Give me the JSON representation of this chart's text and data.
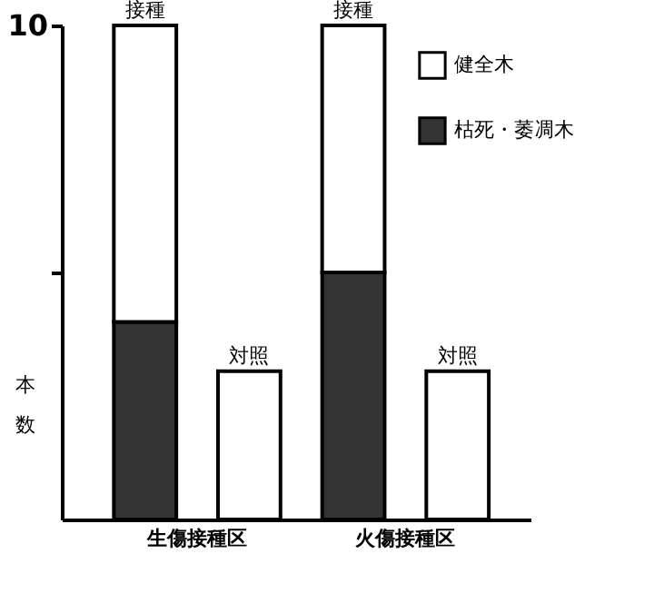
{
  "chart_data": {
    "type": "bar",
    "stacked": true,
    "categories": [
      "接種",
      "対照",
      "接種",
      "対照"
    ],
    "series": [
      {
        "name": "枯死・萎凋木",
        "color": "#333333",
        "values": [
          4,
          0,
          5,
          0
        ]
      },
      {
        "name": "健全木",
        "color": "#ffffff",
        "values": [
          6,
          3,
          5,
          3
        ]
      }
    ],
    "ylabel": "本数",
    "ylim": [
      0,
      10
    ],
    "yticks": [
      {
        "value": 5,
        "label": null
      },
      10
    ],
    "annotations": [
      "生傷接種区",
      "火傷接種区"
    ],
    "legend": "top right",
    "grid": false
  }
}
